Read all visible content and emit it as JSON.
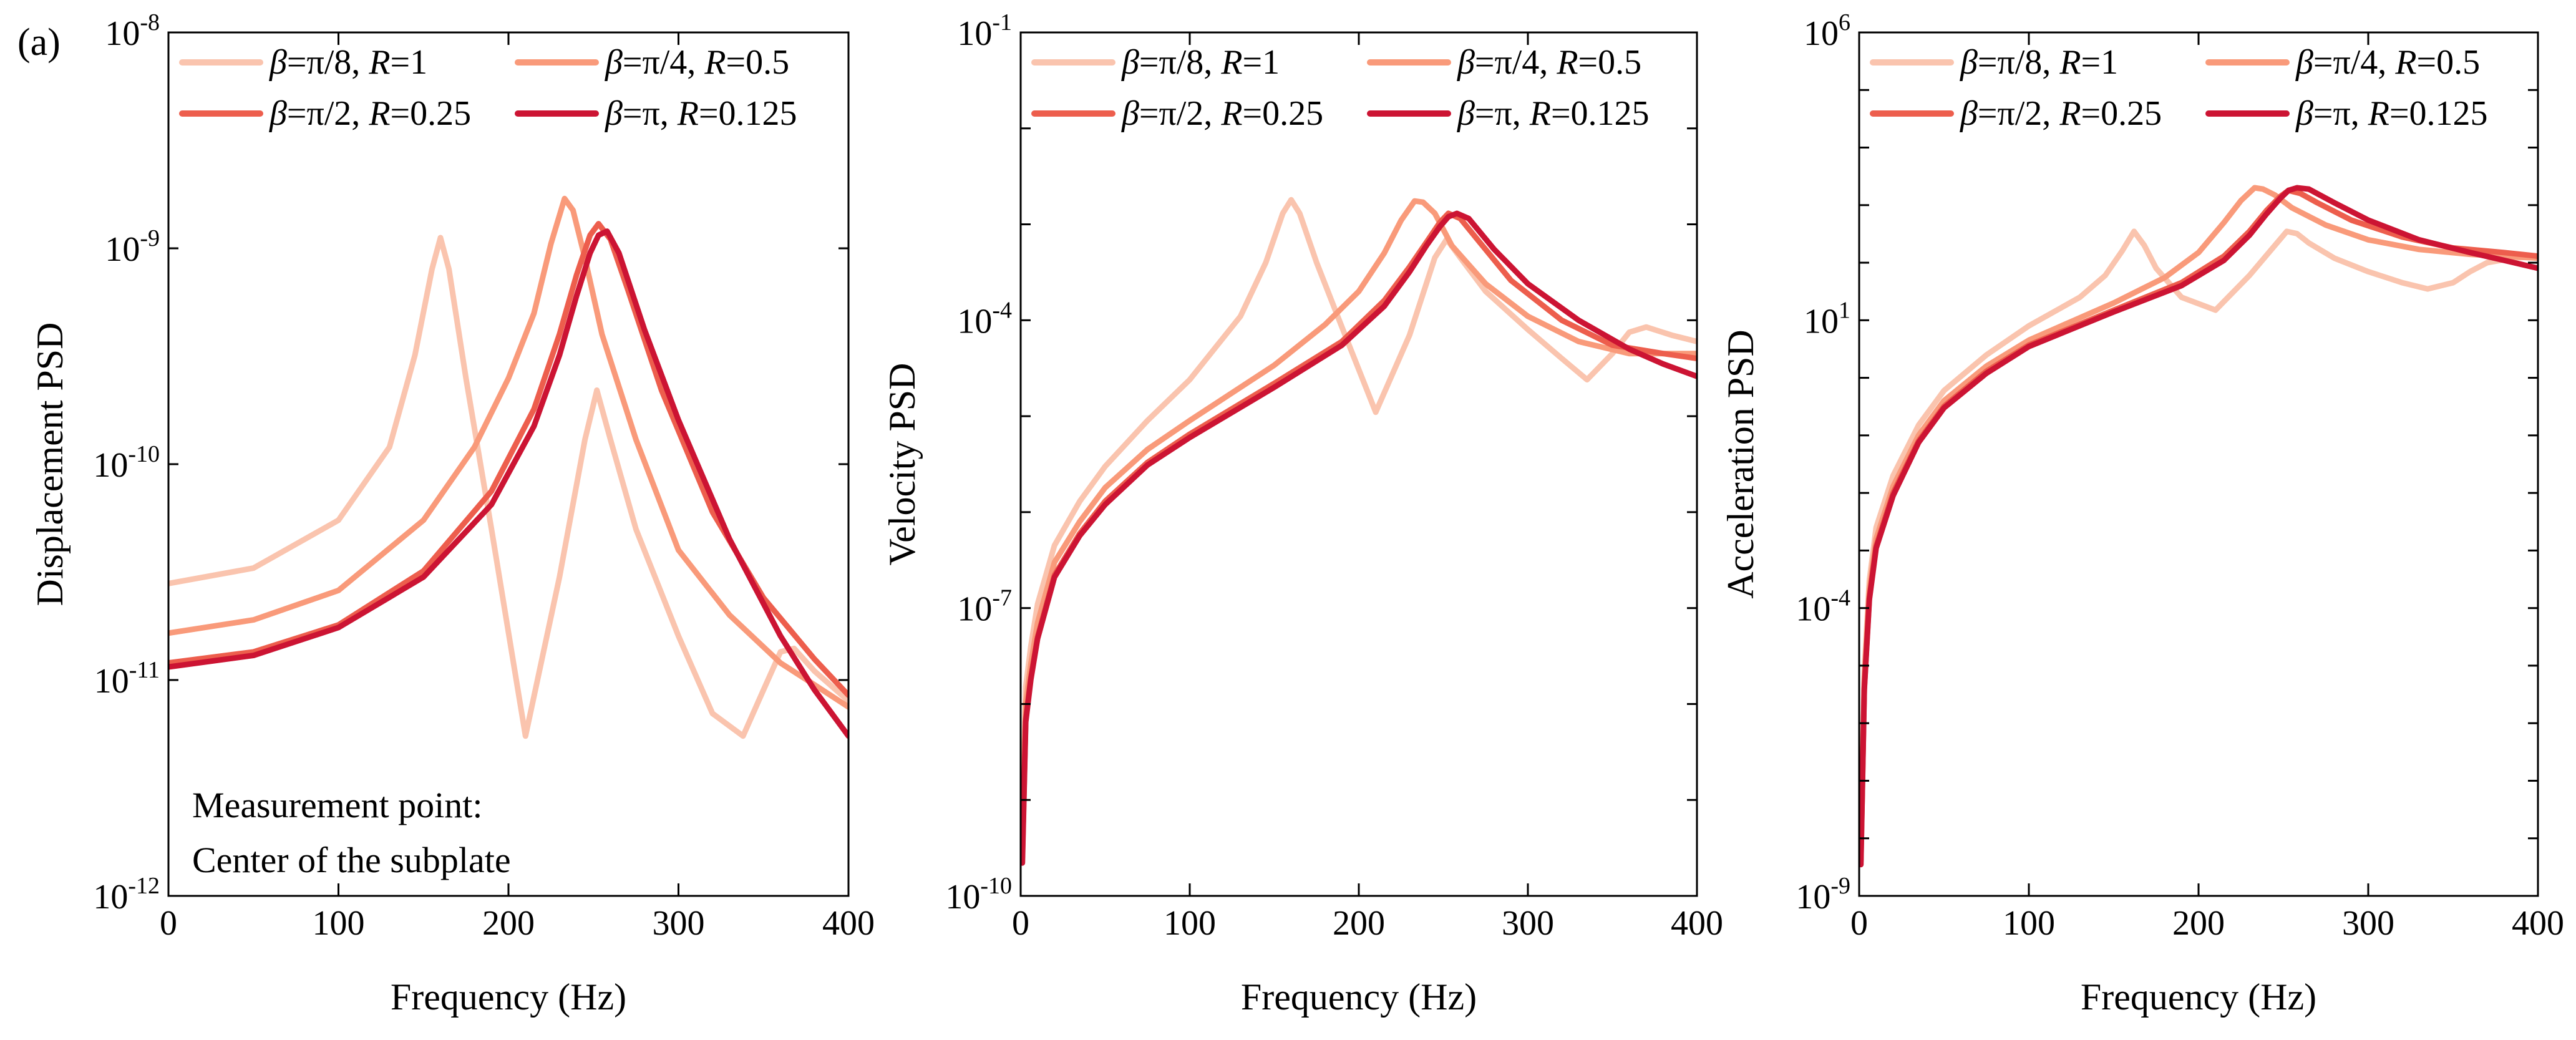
{
  "figure": {
    "panel_tag": "(a)",
    "annotation": [
      "Measurement point:",
      "Center of the subplate"
    ]
  },
  "legend": [
    {
      "beta": "π/8",
      "r": "1",
      "color": "#fac4ae"
    },
    {
      "beta": "π/4",
      "r": "0.5",
      "color": "#f99a7a"
    },
    {
      "beta": "π/2",
      "r": "0.25",
      "color": "#ed5e4d"
    },
    {
      "beta": "π",
      "r": "0.125",
      "color": "#cc1433"
    }
  ],
  "chart_data": [
    {
      "type": "line",
      "xlabel": "Frequency (Hz)",
      "ylabel": "Displacement PSD",
      "xlim": [
        0,
        400
      ],
      "ylim": [
        1e-12,
        1e-08
      ],
      "yscale": "log",
      "x_ticks": [
        "0",
        "100",
        "200",
        "300",
        "400"
      ],
      "y_ticks": [
        {
          "base": "10",
          "exp": "-12"
        },
        {
          "base": "10",
          "exp": "-11"
        },
        {
          "base": "10",
          "exp": "-10"
        },
        {
          "base": "10",
          "exp": "-9"
        },
        {
          "base": "10",
          "exp": "-8"
        }
      ],
      "grid": false,
      "legend_position": "top",
      "series": [
        {
          "name": "β=π/8, R=1",
          "x": [
            0,
            50,
            100,
            130,
            145,
            155,
            160,
            165,
            175,
            190,
            210,
            230,
            245,
            252,
            260,
            275,
            300,
            320,
            338,
            350,
            360,
            368,
            380,
            400
          ],
          "y": [
            2.8e-11,
            3.3e-11,
            5.5e-11,
            1.2e-10,
            3.2e-10,
            8e-10,
            1.12e-09,
            8e-10,
            2.5e-10,
            5e-11,
            5.5e-12,
            3e-11,
            1.3e-10,
            2.2e-10,
            1.3e-10,
            5e-11,
            1.6e-11,
            7e-12,
            5.5e-12,
            9e-12,
            1.35e-11,
            1.4e-11,
            1.1e-11,
            8e-12
          ]
        },
        {
          "name": "β=π/4, R=0.5",
          "x": [
            0,
            50,
            100,
            150,
            180,
            200,
            215,
            225,
            233,
            238,
            245,
            255,
            275,
            300,
            330,
            360,
            380,
            400
          ],
          "y": [
            1.65e-11,
            1.9e-11,
            2.6e-11,
            5.5e-11,
            1.2e-10,
            2.5e-10,
            5e-10,
            1.05e-09,
            1.7e-09,
            1.5e-09,
            9e-10,
            4e-10,
            1.3e-10,
            4e-11,
            2e-11,
            1.2e-11,
            9.5e-12,
            7.5e-12
          ]
        },
        {
          "name": "β=π/2, R=0.25",
          "x": [
            0,
            50,
            100,
            150,
            190,
            215,
            230,
            240,
            248,
            253,
            260,
            270,
            290,
            320,
            350,
            380,
            400
          ],
          "y": [
            1.2e-11,
            1.35e-11,
            1.8e-11,
            3.2e-11,
            7.5e-11,
            1.8e-10,
            4e-10,
            7.5e-10,
            1.15e-09,
            1.3e-09,
            1.1e-09,
            6.5e-10,
            2.2e-10,
            6e-11,
            2.4e-11,
            1.25e-11,
            8.5e-12
          ]
        },
        {
          "name": "β=π, R=0.125",
          "x": [
            0,
            50,
            100,
            150,
            190,
            215,
            230,
            240,
            248,
            253,
            258,
            265,
            280,
            300,
            330,
            360,
            380,
            400
          ],
          "y": [
            1.15e-11,
            1.3e-11,
            1.75e-11,
            3e-11,
            6.5e-11,
            1.5e-10,
            3.2e-10,
            6e-10,
            9.5e-10,
            1.15e-09,
            1.2e-09,
            9.5e-10,
            4.2e-10,
            1.6e-10,
            4.5e-11,
            1.6e-11,
            9e-12,
            5.5e-12
          ]
        }
      ]
    },
    {
      "type": "line",
      "xlabel": "Frequency (Hz)",
      "ylabel": "Velocity PSD",
      "xlim": [
        0,
        400
      ],
      "ylim": [
        1e-10,
        0.1
      ],
      "yscale": "log",
      "x_ticks": [
        "0",
        "100",
        "200",
        "300",
        "400"
      ],
      "y_ticks": [
        {
          "base": "10",
          "exp": "-10"
        },
        {
          "base": "10",
          "exp": "-7"
        },
        {
          "base": "10",
          "exp": "-4"
        },
        {
          "base": "10",
          "exp": "-1"
        }
      ],
      "grid": false,
      "legend_position": "top",
      "series": [
        {
          "name": "β=π/8, R=1",
          "x": [
            1,
            3,
            6,
            10,
            20,
            35,
            50,
            75,
            100,
            130,
            145,
            155,
            160,
            165,
            175,
            190,
            210,
            230,
            245,
            252,
            260,
            275,
            300,
            320,
            335,
            350,
            360,
            370,
            385,
            400
          ],
          "y": [
            5e-10,
            1.5e-08,
            4e-08,
            1.1e-07,
            4.5e-07,
            1.3e-06,
            3e-06,
            9e-06,
            2.4e-05,
            0.00011,
            0.0004,
            0.0013,
            0.0018,
            0.0013,
            0.0004,
            8.5e-05,
            1.1e-05,
            7e-05,
            0.00045,
            0.0007,
            0.00045,
            0.0002,
            8e-05,
            4e-05,
            2.4e-05,
            4.5e-05,
            7.5e-05,
            8.5e-05,
            7e-05,
            6e-05
          ]
        },
        {
          "name": "β=π/4, R=0.5",
          "x": [
            1,
            3,
            6,
            10,
            20,
            35,
            50,
            75,
            100,
            150,
            180,
            200,
            215,
            225,
            233,
            238,
            245,
            255,
            275,
            300,
            330,
            360,
            380,
            400
          ],
          "y": [
            3.5e-10,
            1e-08,
            2.6e-08,
            7e-08,
            3e-07,
            8e-07,
            1.8e-06,
            4.5e-06,
            9e-06,
            3.4e-05,
            9e-05,
            0.0002,
            0.0005,
            0.0011,
            0.00175,
            0.0017,
            0.0013,
            0.0006,
            0.00024,
            0.00011,
            6e-05,
            4.5e-05,
            4.5e-05,
            4.5e-05
          ]
        },
        {
          "name": "β=π/2, R=0.25",
          "x": [
            1,
            3,
            6,
            10,
            20,
            35,
            50,
            75,
            100,
            150,
            190,
            215,
            230,
            240,
            248,
            253,
            260,
            270,
            290,
            320,
            350,
            380,
            400
          ],
          "y": [
            2.5e-10,
            7e-09,
            1.9e-08,
            5e-08,
            2.2e-07,
            6e-07,
            1.3e-06,
            3.3e-06,
            6.5e-06,
            2.2e-05,
            6e-05,
            0.00016,
            0.00036,
            0.00065,
            0.00105,
            0.0013,
            0.00115,
            0.0007,
            0.00026,
            0.0001,
            5.5e-05,
            4.5e-05,
            4e-05
          ]
        },
        {
          "name": "β=π, R=0.125",
          "x": [
            1,
            3,
            6,
            10,
            20,
            35,
            50,
            75,
            100,
            150,
            190,
            215,
            230,
            240,
            248,
            253,
            258,
            265,
            280,
            300,
            330,
            360,
            380,
            400
          ],
          "y": [
            2.2e-10,
            6.5e-09,
            1.8e-08,
            4.8e-08,
            2.1e-07,
            5.7e-07,
            1.2e-06,
            3.1e-06,
            6e-06,
            2e-05,
            5.5e-05,
            0.00014,
            0.00032,
            0.0006,
            0.00095,
            0.0012,
            0.0013,
            0.00115,
            0.00055,
            0.00024,
            0.0001,
            5e-05,
            3.5e-05,
            2.6e-05
          ]
        }
      ]
    },
    {
      "type": "line",
      "xlabel": "Frequency (Hz)",
      "ylabel": "Acceleration PSD",
      "xlim": [
        0,
        400
      ],
      "ylim": [
        1e-09,
        1000000.0
      ],
      "yscale": "log",
      "x_ticks": [
        "0",
        "100",
        "200",
        "300",
        "400"
      ],
      "y_ticks": [
        {
          "base": "10",
          "exp": "-9"
        },
        {
          "base": "10",
          "exp": "-4"
        },
        {
          "base": "10",
          "exp": "1"
        },
        {
          "base": "10",
          "exp": "6"
        }
      ],
      "grid": false,
      "legend_position": "top",
      "series": [
        {
          "name": "β=π/8, R=1",
          "x": [
            1,
            3,
            6,
            10,
            20,
            35,
            50,
            75,
            100,
            130,
            145,
            155,
            162,
            168,
            175,
            190,
            210,
            230,
            245,
            252,
            258,
            265,
            280,
            300,
            320,
            335,
            350,
            360,
            370,
            385,
            400
          ],
          "y": [
            1e-08,
            8e-06,
            0.0003,
            0.0025,
            0.02,
            0.15,
            0.6,
            2.5,
            8,
            25,
            60,
            160,
            350,
            200,
            80,
            25,
            15,
            60,
            200,
            350,
            320,
            220,
            120,
            70,
            45,
            35,
            45,
            70,
            100,
            120,
            130
          ]
        },
        {
          "name": "β=π/4, R=0.5",
          "x": [
            1,
            3,
            6,
            10,
            20,
            35,
            50,
            75,
            100,
            150,
            180,
            200,
            215,
            225,
            233,
            238,
            245,
            255,
            275,
            300,
            330,
            360,
            380,
            400
          ],
          "y": [
            5e-09,
            5e-06,
            0.0002,
            0.0016,
            0.013,
            0.1,
            0.4,
            1.6,
            4.5,
            20,
            55,
            150,
            500,
            1200,
            2000,
            1900,
            1500,
            900,
            450,
            250,
            170,
            140,
            130,
            120
          ]
        },
        {
          "name": "β=π/2, R=0.25",
          "x": [
            1,
            3,
            6,
            10,
            20,
            35,
            50,
            75,
            100,
            150,
            190,
            215,
            230,
            240,
            248,
            253,
            260,
            270,
            290,
            320,
            350,
            380,
            400
          ],
          "y": [
            4e-09,
            4e-06,
            0.00015,
            0.0012,
            0.01,
            0.08,
            0.32,
            1.3,
            3.7,
            15,
            45,
            130,
            350,
            800,
            1400,
            1800,
            1600,
            1100,
            550,
            280,
            180,
            150,
            130
          ]
        },
        {
          "name": "β=π, R=0.125",
          "x": [
            1,
            3,
            6,
            10,
            20,
            35,
            50,
            75,
            100,
            150,
            190,
            215,
            230,
            240,
            248,
            253,
            258,
            265,
            280,
            300,
            330,
            360,
            380,
            400
          ],
          "y": [
            3.5e-09,
            3.8e-06,
            0.00014,
            0.0011,
            0.009,
            0.075,
            0.3,
            1.2,
            3.5,
            14,
            40,
            110,
            300,
            700,
            1300,
            1800,
            2000,
            1900,
            1100,
            550,
            250,
            150,
            110,
            80
          ]
        }
      ]
    }
  ]
}
